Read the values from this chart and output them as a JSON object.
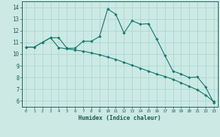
{
  "xlabel": "Humidex (Indice chaleur)",
  "ylabel": "",
  "bg_color": "#cce9e4",
  "grid_color": "#aad6d0",
  "line_color": "#1a7a6e",
  "xlim": [
    -0.5,
    23.5
  ],
  "ylim": [
    5.5,
    14.5
  ],
  "yticks": [
    6,
    7,
    8,
    9,
    10,
    11,
    12,
    13,
    14
  ],
  "xticks": [
    0,
    1,
    2,
    3,
    4,
    5,
    6,
    7,
    8,
    9,
    10,
    11,
    12,
    13,
    14,
    15,
    16,
    17,
    18,
    19,
    20,
    21,
    22,
    23
  ],
  "line1_x": [
    0,
    1,
    2,
    3,
    4,
    5,
    6,
    7,
    8,
    9,
    10,
    11,
    12,
    13,
    14,
    15,
    16,
    17,
    18,
    19,
    20,
    21,
    22,
    23
  ],
  "line1_y": [
    10.6,
    10.6,
    11.0,
    11.4,
    11.4,
    10.5,
    10.5,
    11.1,
    11.1,
    11.5,
    13.85,
    13.4,
    11.8,
    12.85,
    12.55,
    12.6,
    11.3,
    9.9,
    8.55,
    8.3,
    8.0,
    8.05,
    7.2,
    5.85
  ],
  "line2_x": [
    0,
    1,
    2,
    3,
    4,
    5,
    6,
    7,
    8,
    9,
    10,
    11,
    12,
    13,
    14,
    15,
    16,
    17,
    18,
    19,
    20,
    21,
    22,
    23
  ],
  "line2_y": [
    10.6,
    10.6,
    11.0,
    11.4,
    10.55,
    10.45,
    10.35,
    10.25,
    10.1,
    9.95,
    9.75,
    9.55,
    9.3,
    9.05,
    8.8,
    8.55,
    8.3,
    8.1,
    7.85,
    7.55,
    7.25,
    6.95,
    6.5,
    5.95
  ]
}
